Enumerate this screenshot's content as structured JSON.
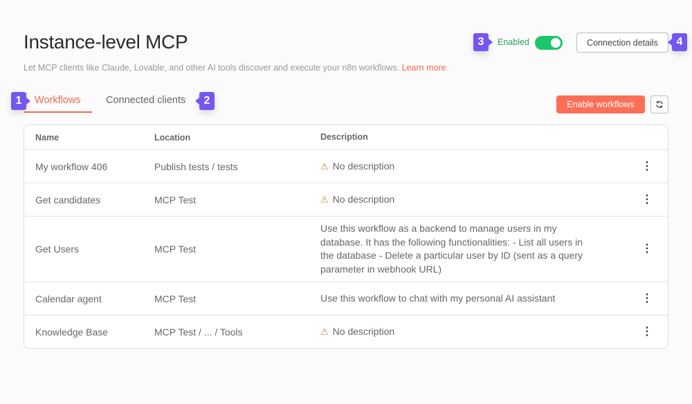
{
  "header": {
    "title": "Instance-level MCP",
    "subtitle": "Let MCP clients like Claude, Lovable, and other AI tools discover and execute your n8n workflows.",
    "learn_more": "Learn more",
    "enabled_label": "Enabled",
    "enabled": true,
    "connection_details": "Connection details"
  },
  "tabs": [
    {
      "label": "Workflows",
      "active": true
    },
    {
      "label": "Connected clients",
      "active": false
    }
  ],
  "toolbar": {
    "enable_workflows": "Enable workflows",
    "refresh_icon": "refresh-icon"
  },
  "badges": [
    "1",
    "2",
    "3",
    "4"
  ],
  "table": {
    "columns": [
      "Name",
      "Location",
      "Description"
    ],
    "rows": [
      {
        "name": "My workflow 406",
        "location": "Publish tests / tests",
        "description": "No description",
        "missing": true
      },
      {
        "name": "Get candidates",
        "location": "MCP Test",
        "description": "No description",
        "missing": true
      },
      {
        "name": "Get Users",
        "location": "MCP Test",
        "description": "Use this workflow as a backend to manage users in my database. It has the following functionalities: - List all users in the database - Delete a particular user by ID (sent as a query parameter in webhook URL)",
        "missing": false
      },
      {
        "name": "Calendar agent",
        "location": "MCP Test",
        "description": "Use this workflow to chat with my personal AI assistant",
        "missing": false
      },
      {
        "name": "Knowledge Base",
        "location": "MCP Test / ... / Tools",
        "description": "No description",
        "missing": true
      }
    ]
  },
  "colors": {
    "accent": "#fd6e57",
    "success": "#1ec66a",
    "badge": "#7357f0"
  }
}
